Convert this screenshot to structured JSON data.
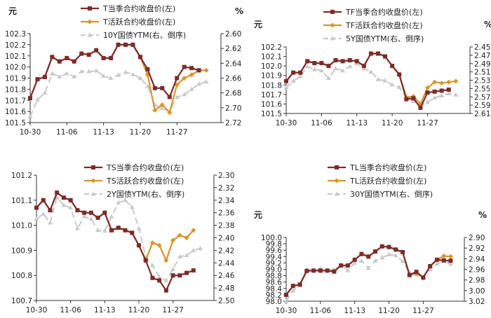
{
  "colors": {
    "current": "#7b2c2c",
    "active": "#d9952a",
    "yield": "#c9c9c9",
    "axis": "#333333",
    "text": "#222222"
  },
  "chart_data": [
    {
      "type": "line",
      "unit_left": "元",
      "unit_right": "%",
      "ylim_left": [
        101.5,
        102.3
      ],
      "yticks_left": [
        "102.3",
        "102.2",
        "102.1",
        "102.0",
        "101.9",
        "101.8",
        "101.7",
        "101.6",
        "101.5"
      ],
      "ylim_right": [
        2.6,
        2.72
      ],
      "right_inverted": true,
      "yticks_right": [
        "2.60",
        "2.62",
        "2.64",
        "2.66",
        "2.68",
        "2.70",
        "2.72"
      ],
      "x_tick_labels": [
        "10-30",
        "11-06",
        "11-13",
        "11-20",
        "11-27"
      ],
      "x_tick_index": [
        0,
        5,
        10,
        15,
        20
      ],
      "n_points": 27,
      "legend_position": "top-center",
      "series": [
        {
          "name": "T当季合约收盘价(左)",
          "axis": "left",
          "style": "current",
          "values": [
            101.72,
            101.89,
            101.91,
            102.09,
            102.05,
            102.08,
            102.05,
            102.12,
            102.11,
            102.15,
            102.08,
            102.08,
            102.2,
            102.2,
            102.2,
            102.09,
            101.98,
            101.81,
            101.81,
            101.73,
            101.9,
            102.0,
            101.99,
            101.97
          ]
        },
        {
          "name": "T活跃合约收盘价(左)",
          "axis": "left",
          "style": "active",
          "values": [
            101.72,
            101.89,
            101.91,
            102.09,
            102.05,
            102.08,
            102.05,
            102.12,
            102.11,
            102.15,
            102.08,
            102.08,
            102.2,
            102.2,
            102.2,
            102.09,
            101.93,
            101.61,
            101.66,
            101.59,
            101.84,
            101.9,
            101.93,
            101.97,
            101.97
          ]
        },
        {
          "name": "10Y国债YTM(右、倒序)",
          "axis": "right",
          "style": "yield",
          "values": [
            2.712,
            2.689,
            2.68,
            2.654,
            2.658,
            2.654,
            2.658,
            2.651,
            2.651,
            2.65,
            2.657,
            2.66,
            2.656,
            2.652,
            2.655,
            2.66,
            2.671,
            2.696,
            2.701,
            2.705,
            2.686,
            2.682,
            2.675,
            2.668,
            2.665
          ]
        }
      ]
    },
    {
      "type": "line",
      "unit_left": "元",
      "unit_right": "%",
      "ylim_left": [
        101.5,
        102.2
      ],
      "yticks_left": [
        "102.2",
        "102.1",
        "102.0",
        "101.9",
        "101.8",
        "101.7",
        "101.6",
        "101.5"
      ],
      "ylim_right": [
        2.45,
        2.61
      ],
      "right_inverted": true,
      "yticks_right": [
        "2.45",
        "2.47",
        "2.49",
        "2.51",
        "2.53",
        "2.55",
        "2.57",
        "2.59",
        "2.61"
      ],
      "x_tick_labels": [
        "10-30",
        "11-06",
        "11-13",
        "11-20",
        "11-27"
      ],
      "x_tick_index": [
        0,
        5,
        10,
        15,
        20
      ],
      "n_points": 27,
      "legend_position": "top-center",
      "series": [
        {
          "name": "TF当季合约收盘价(左)",
          "axis": "left",
          "style": "current",
          "values": [
            101.84,
            101.93,
            101.93,
            102.05,
            102.03,
            102.03,
            102.0,
            102.06,
            102.05,
            102.06,
            102.05,
            102.0,
            102.13,
            102.13,
            102.1,
            102.0,
            101.91,
            101.65,
            101.66,
            101.56,
            101.72,
            101.73,
            101.74,
            101.75
          ]
        },
        {
          "name": "TF活跃合约收盘价(左)",
          "axis": "left",
          "style": "active",
          "values": [
            101.84,
            101.93,
            101.93,
            102.05,
            102.03,
            102.03,
            102.0,
            102.06,
            102.05,
            102.06,
            102.05,
            102.0,
            102.13,
            102.13,
            102.1,
            102.0,
            101.91,
            101.67,
            101.68,
            101.6,
            101.77,
            101.83,
            101.82,
            101.83,
            101.84
          ]
        },
        {
          "name": "5Y国债YTM(右、倒序)",
          "axis": "right",
          "style": "yield",
          "values": [
            2.548,
            2.532,
            2.521,
            2.497,
            2.504,
            2.507,
            2.525,
            2.502,
            2.507,
            2.497,
            2.49,
            2.502,
            2.51,
            2.528,
            2.531,
            2.541,
            2.547,
            2.572,
            2.581,
            2.591,
            2.583,
            2.572,
            2.567,
            2.562,
            2.565
          ]
        }
      ]
    },
    {
      "type": "line",
      "unit_left": "元",
      "unit_right": "%",
      "ylim_left": [
        100.7,
        101.2
      ],
      "yticks_left": [
        "101.2",
        "101.1",
        "101.0",
        "100.9",
        "100.8",
        "100.7"
      ],
      "ylim_right": [
        2.3,
        2.5
      ],
      "right_inverted": true,
      "yticks_right": [
        "2.30",
        "2.32",
        "2.34",
        "2.36",
        "2.38",
        "2.40",
        "2.42",
        "2.44",
        "2.46",
        "2.48",
        "2.50"
      ],
      "x_tick_labels": [
        "10-30",
        "11-06",
        "11-13",
        "11-20",
        "11-27"
      ],
      "x_tick_index": [
        0,
        5,
        10,
        15,
        20
      ],
      "n_points": 27,
      "legend_position": "top-center",
      "series": [
        {
          "name": "TS当季合约收盘价(左)",
          "axis": "left",
          "style": "current",
          "values": [
            101.07,
            101.1,
            101.06,
            101.13,
            101.11,
            101.1,
            101.06,
            101.05,
            101.05,
            101.03,
            101.05,
            100.98,
            100.99,
            100.98,
            100.97,
            100.92,
            100.86,
            100.79,
            100.78,
            100.74,
            100.8,
            100.8,
            100.81,
            100.82
          ]
        },
        {
          "name": "TS活跃合约收盘价(左)",
          "axis": "left",
          "style": "active",
          "values": [
            101.07,
            101.1,
            101.06,
            101.13,
            101.11,
            101.1,
            101.06,
            101.05,
            101.05,
            101.03,
            101.05,
            100.98,
            100.99,
            100.98,
            100.97,
            100.92,
            100.86,
            100.93,
            100.92,
            100.86,
            100.94,
            100.96,
            100.95,
            100.98
          ]
        },
        {
          "name": "2Y国债YTM(右、倒序)",
          "axis": "right",
          "style": "yield",
          "values": [
            2.37,
            2.362,
            2.376,
            2.335,
            2.348,
            2.352,
            2.385,
            2.366,
            2.37,
            2.388,
            2.389,
            2.366,
            2.344,
            2.34,
            2.351,
            2.385,
            2.43,
            2.444,
            2.463,
            2.468,
            2.45,
            2.43,
            2.428,
            2.42,
            2.417
          ]
        }
      ]
    },
    {
      "type": "line",
      "unit_left": "元",
      "unit_right": "%",
      "ylim_left": [
        98.0,
        100.0
      ],
      "yticks_left": [
        "100.0",
        "99.8",
        "99.6",
        "99.4",
        "99.2",
        "99.0",
        "98.8",
        "98.6",
        "98.4",
        "98.2",
        "98.0"
      ],
      "ylim_right": [
        2.9,
        3.02
      ],
      "right_inverted": true,
      "yticks_right": [
        "2.90",
        "2.92",
        "2.94",
        "2.96",
        "2.98",
        "3.00",
        "3.02"
      ],
      "x_tick_labels": [
        "10-30",
        "11-06",
        "11-13",
        "11-20",
        "11-27"
      ],
      "x_tick_index": [
        0,
        5,
        10,
        15,
        20
      ],
      "n_points": 27,
      "legend_position": "top-center",
      "series": [
        {
          "name": "TL当季合约收盘价(左)",
          "axis": "left",
          "style": "current",
          "values": [
            98.2,
            98.48,
            98.52,
            98.95,
            98.96,
            98.96,
            98.96,
            98.93,
            99.12,
            99.12,
            99.3,
            99.48,
            99.4,
            99.56,
            99.72,
            99.7,
            99.62,
            99.54,
            98.82,
            98.92,
            98.74,
            99.1,
            99.3,
            99.28,
            99.27
          ]
        },
        {
          "name": "TL活跃合约收盘价(左)",
          "axis": "left",
          "style": "active",
          "values": [
            98.2,
            98.48,
            98.52,
            98.95,
            98.96,
            98.96,
            98.96,
            98.93,
            99.12,
            99.12,
            99.3,
            99.48,
            99.4,
            99.56,
            99.72,
            99.7,
            99.62,
            99.54,
            98.82,
            98.87,
            98.74,
            99.1,
            99.3,
            99.42,
            99.4
          ]
        },
        {
          "name": "30Y国债YTM(右、倒序)",
          "axis": "right",
          "style": "yield",
          "values": [
            3.02,
            3.0,
            2.99,
            2.96,
            2.962,
            2.958,
            2.962,
            2.96,
            2.952,
            2.962,
            2.948,
            2.944,
            2.958,
            2.944,
            2.938,
            2.932,
            2.934,
            2.945,
            2.966,
            2.97,
            2.974,
            2.96,
            2.95,
            2.945,
            2.95
          ]
        }
      ]
    }
  ]
}
